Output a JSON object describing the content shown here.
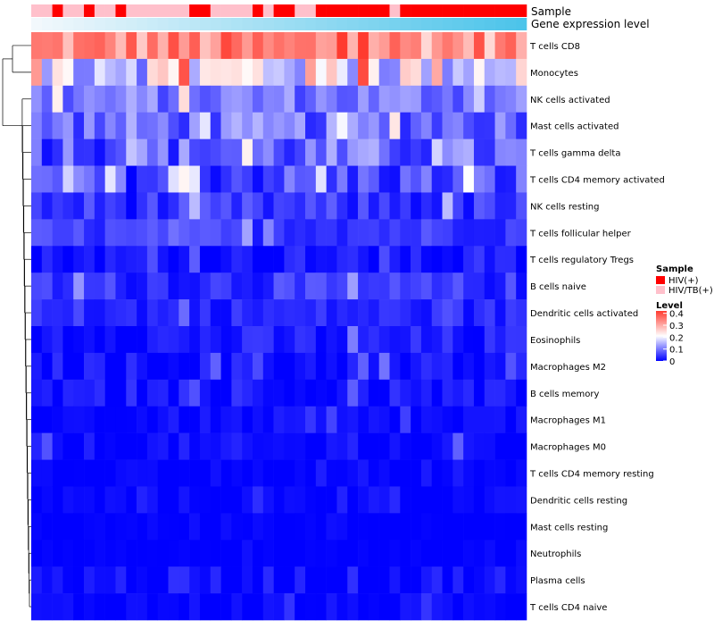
{
  "chart_data": {
    "type": "heatmap",
    "title": "",
    "annotations": {
      "sample_label": "Sample",
      "gene_expression_label": "Gene expression level",
      "sample_groups": [
        "HIV(+)",
        "HIV/TB(+)"
      ],
      "sample_group_colors": {
        "HIV(+)": "#ff0000",
        "HIV/TB(+)": "#ffc0cb"
      },
      "sample_row": [
        "HIV/TB(+)",
        "HIV/TB(+)",
        "HIV(+)",
        "HIV/TB(+)",
        "HIV/TB(+)",
        "HIV(+)",
        "HIV/TB(+)",
        "HIV/TB(+)",
        "HIV(+)",
        "HIV/TB(+)",
        "HIV/TB(+)",
        "HIV/TB(+)",
        "HIV/TB(+)",
        "HIV/TB(+)",
        "HIV/TB(+)",
        "HIV(+)",
        "HIV(+)",
        "HIV/TB(+)",
        "HIV/TB(+)",
        "HIV/TB(+)",
        "HIV/TB(+)",
        "HIV(+)",
        "HIV/TB(+)",
        "HIV(+)",
        "HIV(+)",
        "HIV/TB(+)",
        "HIV/TB(+)",
        "HIV(+)",
        "HIV(+)",
        "HIV(+)",
        "HIV(+)",
        "HIV(+)",
        "HIV(+)",
        "HIV(+)",
        "HIV/TB(+)",
        "HIV(+)",
        "HIV(+)",
        "HIV(+)",
        "HIV(+)",
        "HIV(+)",
        "HIV(+)",
        "HIV(+)",
        "HIV(+)",
        "HIV(+)",
        "HIV(+)",
        "HIV(+)",
        "HIV(+)"
      ],
      "gene_expression_gradient": [
        "#f2f8fc",
        "#4cc4ea"
      ]
    },
    "rows": [
      "T cells CD8",
      "Monocytes",
      "NK cells activated",
      "Mast cells activated",
      "T cells gamma delta",
      "T cells CD4 memory activated",
      "NK cells resting",
      "T cells follicular helper",
      "T cells regulatory  Tregs",
      "B cells naive",
      "Dendritic cells activated",
      "Eosinophils",
      "Macrophages M2",
      "B cells memory",
      "Macrophages M1",
      "Macrophages M0",
      "T cells CD4 memory resting",
      "Dendritic cells resting",
      "Mast cells resting",
      "Neutrophils",
      "Plasma cells",
      "T cells CD4 naive"
    ],
    "n_columns": 47,
    "legend": {
      "sample_title": "Sample",
      "level_title": "Level",
      "ticks": [
        "0.4",
        "0.3",
        "0.2",
        "0.1",
        "0"
      ],
      "range": [
        0,
        0.42
      ],
      "colors": {
        "low": "#0000ff",
        "mid": "#ffffff",
        "high": "#ff3b2f"
      }
    },
    "row_profiles": [
      {
        "mean": 0.33,
        "spread": 0.08
      },
      {
        "mean": 0.2,
        "spread": 0.12
      },
      {
        "mean": 0.1,
        "spread": 0.05
      },
      {
        "mean": 0.09,
        "spread": 0.06
      },
      {
        "mean": 0.08,
        "spread": 0.07
      },
      {
        "mean": 0.06,
        "spread": 0.06
      },
      {
        "mean": 0.04,
        "spread": 0.04
      },
      {
        "mean": 0.05,
        "spread": 0.03
      },
      {
        "mean": 0.015,
        "spread": 0.025
      },
      {
        "mean": 0.04,
        "spread": 0.035
      },
      {
        "mean": 0.03,
        "spread": 0.025
      },
      {
        "mean": 0.02,
        "spread": 0.03
      },
      {
        "mean": 0.012,
        "spread": 0.03
      },
      {
        "mean": 0.01,
        "spread": 0.025
      },
      {
        "mean": 0.005,
        "spread": 0.02
      },
      {
        "mean": 0.005,
        "spread": 0.025
      },
      {
        "mean": 0.002,
        "spread": 0.008
      },
      {
        "mean": 0.003,
        "spread": 0.015
      },
      {
        "mean": 0.0,
        "spread": 0.005
      },
      {
        "mean": 0.0,
        "spread": 0.005
      },
      {
        "mean": 0.01,
        "spread": 0.03
      },
      {
        "mean": 0.005,
        "spread": 0.015
      }
    ]
  }
}
